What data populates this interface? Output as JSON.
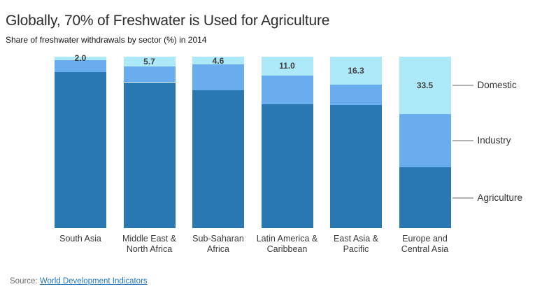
{
  "header": {
    "title": "Globally, 70% of Freshwater is Used for Agriculture",
    "subtitle": "Share of freshwater withdrawals by sector (%) in 2014"
  },
  "chart_data": {
    "type": "bar",
    "variant": "stacked-percent-column",
    "title": "Globally, 70% of Freshwater is Used for Agriculture",
    "subtitle": "Share of freshwater withdrawals by sector (%) in 2014",
    "xlabel": "",
    "ylabel": "Share of freshwater withdrawals (%)",
    "ylim": [
      0,
      100
    ],
    "grid": false,
    "categories": [
      "South Asia",
      "Middle East & North Africa",
      "Sub-Saharan Africa",
      "Latin America & Caribbean",
      "East Asia & Pacific",
      "Europe and Central Asia"
    ],
    "category_label_lines": [
      [
        "South Asia"
      ],
      [
        "Middle East &",
        "North Africa"
      ],
      [
        "Sub-Saharan",
        "Africa"
      ],
      [
        "Latin America &",
        "Caribbean"
      ],
      [
        "East Asia &",
        "Pacific"
      ],
      [
        "Europe and",
        "Central Asia"
      ]
    ],
    "series": [
      {
        "name": "Agriculture",
        "color": "#2978b1",
        "values": [
          91.0,
          85.1,
          80.6,
          72.3,
          72.0,
          35.5
        ]
      },
      {
        "name": "Industry",
        "color": "#69adef",
        "values": [
          7.0,
          9.2,
          14.8,
          16.7,
          11.7,
          31.0
        ]
      },
      {
        "name": "Domestic",
        "color": "#ade9f9",
        "values": [
          2.0,
          5.7,
          4.6,
          11.0,
          16.3,
          33.5
        ]
      }
    ],
    "data_labels": {
      "series": "Domestic",
      "values": [
        "2.0",
        "5.7",
        "4.6",
        "11.0",
        "16.3",
        "33.5"
      ]
    },
    "legend": {
      "position": "right",
      "entries": [
        "Domestic",
        "Industry",
        "Agriculture"
      ],
      "connector_color": "#b3b3b3"
    }
  },
  "source": {
    "label": "Source: ",
    "link_text": "World Development Indicators"
  }
}
